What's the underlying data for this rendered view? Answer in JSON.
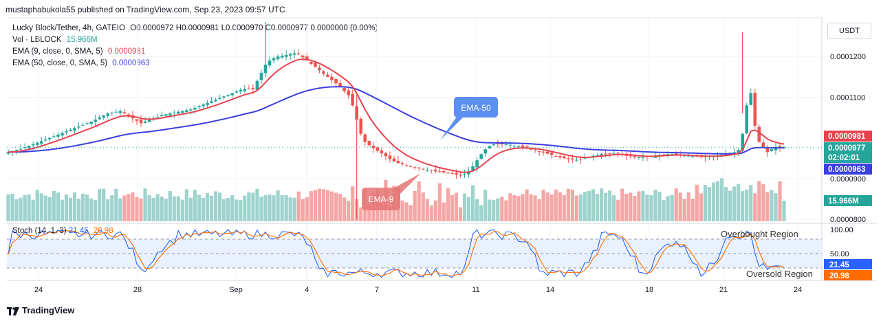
{
  "header": {
    "publish_line": "mustaphabukola55 published on TradingView.com, Sep 23, 2023 09:57 UTC"
  },
  "legend": {
    "symbol": "Lucky Block/Tether, 4h, GATEIO",
    "ohlc": "O0.0000972 H0.0000981 L0.0000970 C0.0000977 0.0000000 (0.00%)",
    "vol_label": "Vol · LBLOCK",
    "vol_value": "15.966M",
    "ema9_label": "EMA (9, close, 0, SMA, 5)",
    "ema9_value": "0.0000981",
    "ema50_label": "EMA (50, close, 0, SMA, 5)",
    "ema50_value": "0.0000963"
  },
  "currency": "USDT",
  "colors": {
    "up": "#26a69a",
    "down": "#ef5350",
    "ema9": "#e8434f",
    "ema50": "#3b3fe0",
    "vol_up": "#9fd3cd",
    "vol_down": "#f5a7a6",
    "stoch_k": "#2962ff",
    "stoch_d": "#ff6d00",
    "callout_blue": "#5b8ff0",
    "callout_red": "#e57373"
  },
  "price_axis": {
    "ticks": [
      "0.0001200",
      "0.0001100",
      "0.0000900",
      "0.0000800"
    ],
    "badges": {
      "ema9": "0.0000981",
      "last": "0.0000977",
      "countdown": "02:02:01",
      "ema50": "0.0000963",
      "volume": "15.966M"
    }
  },
  "stoch_axis": {
    "ticks": [
      "100.00",
      "50.00"
    ],
    "k_badge": "21.45",
    "d_badge": "20.98"
  },
  "time_axis": [
    "24",
    "28",
    "Sep",
    "4",
    "7",
    "11",
    "14",
    "18",
    "21",
    "24"
  ],
  "annotations": {
    "ema50_callout": "EMA-50",
    "ema9_callout": "EMA-9",
    "overbought": "Overbought Region",
    "oversold": "Oversold Region"
  },
  "stoch_legend": {
    "label": "Stoch (14, 1, 3)",
    "k": "21.45",
    "d": "20.98"
  },
  "footer": {
    "brand": "TradingView"
  },
  "chart_data": {
    "type": "candlestick",
    "interval": "4h",
    "price_range": [
      7.95e-05,
      0.0001295
    ],
    "x_labels": [
      "24",
      "28",
      "Sep",
      "4",
      "7",
      "11",
      "14",
      "18",
      "21",
      "24"
    ],
    "close_series": [
      9.65e-05,
      9.67e-05,
      9.7e-05,
      9.73e-05,
      9.77e-05,
      9.8e-05,
      9.84e-05,
      9.88e-05,
      9.92e-05,
      9.96e-05,
      0.0001,
      0.0001004,
      0.0001008,
      0.0001012,
      0.0001016,
      0.000102,
      0.0001024,
      0.0001028,
      0.0001032,
      0.0001036,
      0.000104,
      0.0001045,
      0.000105,
      0.0001055,
      0.000106,
      0.0001062,
      0.0001064,
      0.0001066,
      0.000106,
      0.0001054,
      0.0001048,
      0.0001042,
      0.0001036,
      0.000104,
      0.0001044,
      0.0001048,
      0.0001052,
      0.0001056,
      0.0001058,
      0.000106,
      0.0001062,
      0.0001064,
      0.0001066,
      0.0001068,
      0.000107,
      0.0001074,
      0.0001078,
      0.0001082,
      0.0001086,
      0.000109,
      0.0001094,
      0.0001098,
      0.0001102,
      0.0001106,
      0.000111,
      0.0001114,
      0.0001118,
      0.000112,
      0.000112,
      0.000112,
      0.000114,
      0.000116,
      0.000118,
      0.000119,
      0.0001196,
      0.00012,
      0.0001202,
      0.0001204,
      0.0001206,
      0.0001208,
      0.0001205,
      0.0001198,
      0.000119,
      0.0001182,
      0.0001174,
      0.0001166,
      0.0001158,
      0.000115,
      0.0001142,
      0.0001134,
      0.0001125,
      0.0001115,
      0.0001105,
      0.000108,
      0.0001045,
      0.000101,
      9.9e-05,
      9.82e-05,
      9.75e-05,
      9.68e-05,
      9.62e-05,
      9.55e-05,
      9.48e-05,
      9.42e-05,
      9.38e-05,
      9.35e-05,
      9.32e-05,
      9.3e-05,
      9.28e-05,
      9.26e-05,
      9.23e-05,
      9.21e-05,
      9.2e-05,
      9.18e-05,
      9.16e-05,
      9.15e-05,
      9.13e-05,
      9.12e-05,
      9.1e-05,
      9.09e-05,
      9.11e-05,
      9.18e-05,
      9.3e-05,
      9.45e-05,
      9.6e-05,
      9.72e-05,
      9.8e-05,
      9.84e-05,
      9.86e-05,
      9.85e-05,
      9.84e-05,
      9.83e-05,
      9.81e-05,
      9.79e-05,
      9.77e-05,
      9.75e-05,
      9.72e-05,
      9.7e-05,
      9.67e-05,
      9.64e-05,
      9.61e-05,
      9.58e-05,
      9.55e-05,
      9.52e-05,
      9.5e-05,
      9.48e-05,
      9.47e-05,
      9.46e-05,
      9.48e-05,
      9.51e-05,
      9.54e-05,
      9.56e-05,
      9.58e-05,
      9.6e-05,
      9.61e-05,
      9.62e-05,
      9.63e-05,
      9.62e-05,
      9.6e-05,
      9.57e-05,
      9.55e-05,
      9.53e-05,
      9.52e-05,
      9.52e-05,
      9.53e-05,
      9.54e-05,
      9.56e-05,
      9.58e-05,
      9.59e-05,
      9.6e-05,
      9.6e-05,
      9.59e-05,
      9.58e-05,
      9.57e-05,
      9.56e-05,
      9.55e-05,
      9.54e-05,
      9.53e-05,
      9.53e-05,
      9.54e-05,
      9.55e-05,
      9.56e-05,
      9.58e-05,
      9.61e-05,
      9.63e-05,
      9.65e-05,
      9.7e-05,
      0.000101,
      0.000108,
      0.000111,
      0.000103,
      9.9e-05,
      9.75e-05,
      9.65e-05,
      9.72e-05,
      9.78e-05,
      9.75e-05,
      9.77e-05
    ],
    "ema9_values_first_last": [
      9.62e-05,
      9.81e-05
    ],
    "ema50_values_first_last": [
      9.6e-05,
      9.63e-05
    ],
    "volume_last": "15.966M",
    "stoch": {
      "k_last": 21.45,
      "d_last": 20.98,
      "range": [
        0,
        100
      ],
      "levels": [
        80,
        50,
        20
      ]
    }
  }
}
